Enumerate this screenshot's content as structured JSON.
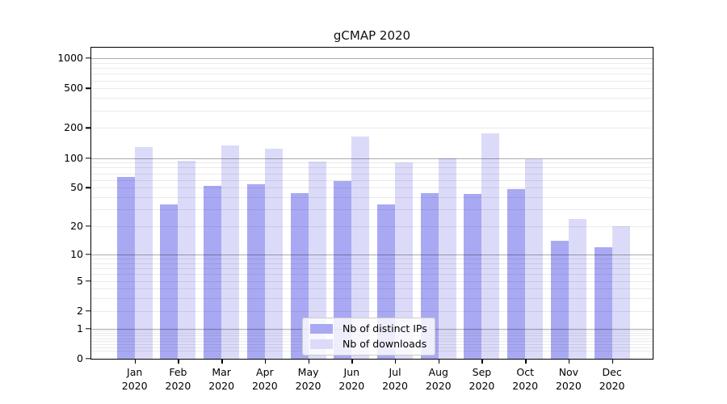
{
  "title": "gCMAP 2020",
  "chart_data": {
    "type": "bar",
    "title": "gCMAP 2020",
    "categories": [
      "Jan",
      "Feb",
      "Mar",
      "Apr",
      "May",
      "Jun",
      "Jul",
      "Aug",
      "Sep",
      "Oct",
      "Nov",
      "Dec"
    ],
    "year_label": "2020",
    "series": [
      {
        "name": "Nb of distinct IPs",
        "color": "#a9a9f3",
        "values": [
          64,
          34,
          52,
          54,
          44,
          59,
          34,
          44,
          43,
          48,
          14,
          12
        ]
      },
      {
        "name": "Nb of downloads",
        "color": "#dbdbf9",
        "values": [
          129,
          93,
          134,
          124,
          92,
          163,
          90,
          100,
          177,
          97,
          24,
          20
        ]
      }
    ],
    "xlabel": "",
    "ylabel": "",
    "yscale": "log1p",
    "ylim": [
      0,
      1275
    ],
    "yticks": [
      0,
      1,
      2,
      5,
      10,
      20,
      50,
      100,
      200,
      500,
      1000
    ],
    "grid": {
      "on": true,
      "major": [
        1,
        10,
        100,
        1000
      ],
      "minor_base": [
        2,
        3,
        4,
        5,
        6,
        7,
        8,
        9
      ],
      "minor_decades": [
        0.1,
        1,
        10,
        100
      ]
    },
    "legend": {
      "position": "lower center",
      "entries": [
        "Nb of distinct IPs",
        "Nb of downloads"
      ]
    },
    "colors": {
      "bar_distinct_ips": "#a9a9f3",
      "bar_downloads": "#dbdbf9",
      "grid_major": "#b0b0b0",
      "grid_minor": "#ebebeb",
      "spine": "#000000"
    }
  }
}
